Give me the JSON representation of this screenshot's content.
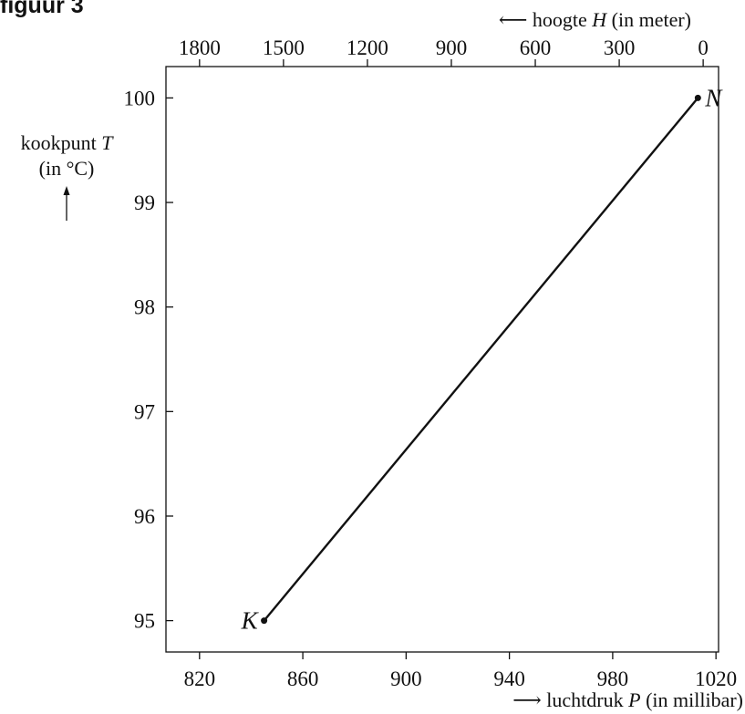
{
  "figure_label": "figuur 3",
  "chart_data": {
    "type": "line",
    "title": "",
    "xlabel": {
      "arrow": "⟶",
      "name": "luchtdruk",
      "symbol": "P",
      "unit": "(in millibar)"
    },
    "ylabel": {
      "name": "kookpunt",
      "symbol": "T",
      "unit": "(in °C)",
      "arrow": "↑"
    },
    "top_axis_label": {
      "arrow": "⟵",
      "name": "hoogte",
      "symbol": "H",
      "unit": "(in meter)"
    },
    "xlim": [
      807,
      1021
    ],
    "ylim": [
      94.7,
      100.3
    ],
    "top_xlim": [
      1920,
      -55
    ],
    "x_ticks": [
      820,
      860,
      900,
      940,
      980,
      1020
    ],
    "y_ticks": [
      95,
      96,
      97,
      98,
      99,
      100
    ],
    "top_ticks": [
      1800,
      1500,
      1200,
      900,
      600,
      300,
      0
    ],
    "grid": false,
    "series": [
      {
        "points": [
          {
            "x": 845,
            "y": 95,
            "label": "K"
          },
          {
            "x": 1013,
            "y": 100,
            "label": "N"
          }
        ]
      }
    ]
  }
}
